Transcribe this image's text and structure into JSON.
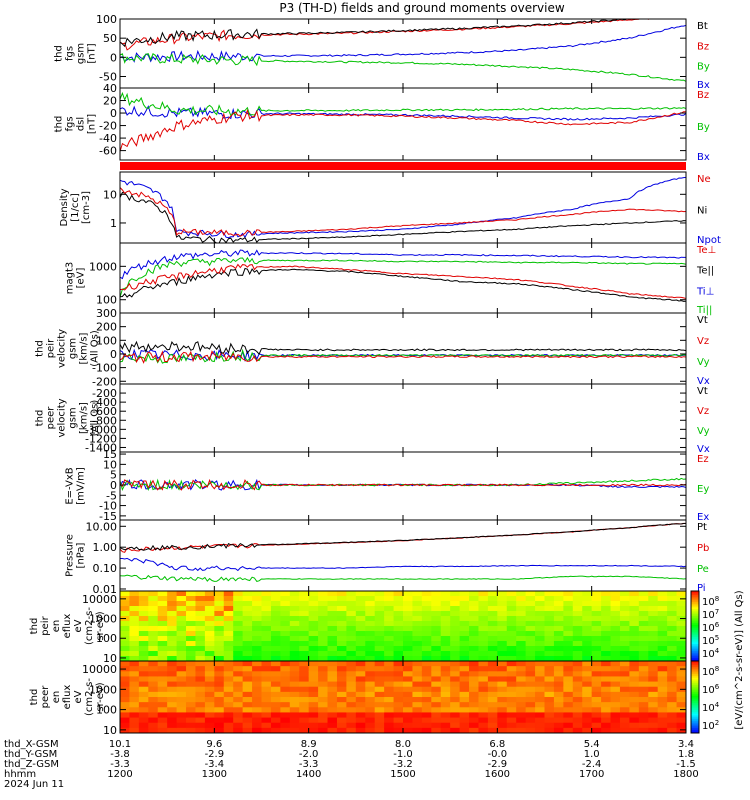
{
  "title": "P3 (TH-D) fields and ground moments overview",
  "x_axis": {
    "hhmm_ticks": [
      "1200",
      "1300",
      "1400",
      "1500",
      "1600",
      "1700",
      "1800"
    ],
    "row_labels": [
      "thd_X-GSM",
      "thd_Y-GSM",
      "thd_Z-GSM",
      "hhmm",
      "2024 Jun 11"
    ],
    "x_gsm": [
      "10.1",
      "9.6",
      "8.9",
      "8.0",
      "6.8",
      "5.4",
      "3.4"
    ],
    "y_gsm": [
      "-3.8",
      "-2.9",
      "-2.0",
      "-1.0",
      "-0.0",
      "1.0",
      "1.8"
    ],
    "z_gsm": [
      "-3.3",
      "-3.4",
      "-3.3",
      "-3.2",
      "-2.9",
      "-2.4",
      "-1.5"
    ]
  },
  "colorbar_label": "[eV/(cm^2-s-sr-eV)] (All Qs)",
  "chart_data": [
    {
      "type": "line",
      "id": "fgs_gsm",
      "ylabel": [
        "thd",
        "fgs",
        "gsm",
        "[nT]"
      ],
      "yticks": [
        "100",
        "50",
        "0",
        "-50"
      ],
      "ylim": [
        -80,
        100
      ],
      "series": [
        {
          "name": "Bt",
          "color": "#000000"
        },
        {
          "name": "Bz",
          "color": "#e00000"
        },
        {
          "name": "By",
          "color": "#00c000"
        },
        {
          "name": "Bx",
          "color": "#0000e0"
        }
      ],
      "x": [
        0,
        0.1,
        0.2,
        0.3,
        0.4,
        0.5,
        0.6,
        0.7,
        0.8,
        0.9,
        1.0
      ],
      "values": {
        "Bt": [
          40,
          55,
          60,
          62,
          65,
          70,
          75,
          82,
          90,
          100,
          110
        ],
        "Bz": [
          30,
          50,
          58,
          60,
          63,
          68,
          73,
          80,
          88,
          98,
          108
        ],
        "By": [
          0,
          -5,
          -8,
          -10,
          -12,
          -14,
          -18,
          -24,
          -32,
          -44,
          -62
        ],
        "Bx": [
          0,
          2,
          3,
          4,
          5,
          8,
          12,
          18,
          30,
          50,
          85
        ]
      }
    },
    {
      "type": "line",
      "id": "fgs_dsl",
      "ylabel": [
        "thd",
        "fgs",
        "dsl",
        "[nT]"
      ],
      "yticks": [
        "40",
        "20",
        "0",
        "-20",
        "-40",
        "-60"
      ],
      "ylim": [
        -75,
        40
      ],
      "series": [
        {
          "name": "Bz",
          "color": "#e00000"
        },
        {
          "name": "By",
          "color": "#00c000"
        },
        {
          "name": "Bx",
          "color": "#0000e0"
        }
      ],
      "x": [
        0,
        0.1,
        0.2,
        0.3,
        0.4,
        0.5,
        0.6,
        0.7,
        0.8,
        0.9,
        1.0
      ],
      "values": {
        "Bz": [
          -55,
          -20,
          -5,
          -3,
          -3,
          -5,
          -8,
          -12,
          -18,
          -15,
          2
        ],
        "By": [
          25,
          5,
          3,
          4,
          4,
          5,
          5,
          6,
          7,
          7,
          8
        ],
        "Bx": [
          5,
          0,
          -1,
          -1,
          -2,
          -3,
          -5,
          -8,
          -10,
          -8,
          -2
        ]
      }
    },
    {
      "type": "line",
      "id": "density",
      "ylabel": [
        "Density",
        "[1/cc]",
        "[cm-3]"
      ],
      "yticks": [
        "10",
        "1"
      ],
      "ylim": [
        0.2,
        60
      ],
      "log": true,
      "series": [
        {
          "name": "Ne",
          "color": "#e00000"
        },
        {
          "name": "Ni",
          "color": "#000000"
        },
        {
          "name": "Npot",
          "color": "#0000e0"
        }
      ],
      "x": [
        0,
        0.1,
        0.2,
        0.3,
        0.4,
        0.5,
        0.6,
        0.7,
        0.8,
        0.9,
        1.0
      ],
      "values": {
        "Ne": [
          15,
          0.5,
          0.45,
          0.5,
          0.6,
          0.8,
          1.0,
          1.3,
          2.0,
          3.0,
          2.5
        ],
        "Ni": [
          10,
          0.3,
          0.25,
          0.28,
          0.32,
          0.4,
          0.5,
          0.6,
          0.8,
          1.0,
          1.2
        ],
        "Npot": [
          30,
          0.5,
          0.4,
          0.45,
          0.5,
          0.6,
          0.9,
          1.5,
          3.0,
          7.0,
          40
        ]
      }
    },
    {
      "type": "line",
      "id": "temperature",
      "ylabel": [
        "magt3",
        "[eV]"
      ],
      "yticks": [
        "1000",
        "100"
      ],
      "ylim": [
        40,
        5000
      ],
      "log": true,
      "series": [
        {
          "name": "Te⊥",
          "color": "#e00000"
        },
        {
          "name": "Te||",
          "color": "#000000"
        },
        {
          "name": "Ti⊥",
          "color": "#0000e0"
        },
        {
          "name": "Ti||",
          "color": "#00c000"
        }
      ],
      "x": [
        0,
        0.1,
        0.2,
        0.3,
        0.4,
        0.5,
        0.6,
        0.7,
        0.8,
        0.9,
        1.0
      ],
      "values": {
        "Te⊥": [
          200,
          500,
          900,
          1000,
          800,
          600,
          500,
          400,
          250,
          150,
          110
        ],
        "Te||": [
          100,
          350,
          700,
          800,
          700,
          500,
          350,
          300,
          200,
          120,
          90
        ],
        "Ti⊥": [
          500,
          2000,
          2500,
          2500,
          2400,
          2200,
          2200,
          2100,
          2000,
          1900,
          1800
        ],
        "Ti||": [
          150,
          1300,
          1500,
          1500,
          1500,
          1400,
          1400,
          1300,
          1300,
          1200,
          1200
        ]
      }
    },
    {
      "type": "line",
      "id": "peir_velocity",
      "ylabel": [
        "thd",
        "peir",
        "velocity",
        "gsm",
        "[km/s]",
        "(All Qs)"
      ],
      "yticks": [
        "300",
        "200",
        "100",
        "0",
        "-100",
        "-200"
      ],
      "ylim": [
        -220,
        300
      ],
      "series": [
        {
          "name": "Vt",
          "color": "#000000"
        },
        {
          "name": "Vz",
          "color": "#e00000"
        },
        {
          "name": "Vy",
          "color": "#00c000"
        },
        {
          "name": "Vx",
          "color": "#0000e0"
        }
      ],
      "x": [
        0,
        0.1,
        0.2,
        0.3,
        0.4,
        0.5,
        0.6,
        0.7,
        0.8,
        0.9,
        1.0
      ],
      "values": {
        "Vt": [
          50,
          60,
          40,
          30,
          30,
          30,
          30,
          30,
          30,
          30,
          30
        ],
        "Vz": [
          -30,
          -20,
          -20,
          -20,
          -20,
          -20,
          -20,
          -20,
          -20,
          -20,
          -20
        ],
        "Vy": [
          -20,
          -40,
          -10,
          -10,
          -10,
          -10,
          -10,
          -10,
          -10,
          -10,
          -10
        ],
        "Vx": [
          0,
          -10,
          -10,
          -10,
          -10,
          -10,
          -10,
          -10,
          -10,
          -10,
          -10
        ]
      }
    },
    {
      "type": "line",
      "id": "peer_velocity",
      "ylabel": [
        "thd",
        "peer",
        "velocity",
        "gsm",
        "[km/s]",
        "(All Qs)"
      ],
      "yticks": [
        "-200",
        "-400",
        "-600",
        "-800",
        "-1000",
        "-1200",
        "-1400"
      ],
      "ylim": [
        -1500,
        0
      ],
      "series": [
        {
          "name": "Vt",
          "color": "#000000"
        },
        {
          "name": "Vz",
          "color": "#e00000"
        },
        {
          "name": "Vy",
          "color": "#00c000"
        },
        {
          "name": "Vx",
          "color": "#0000e0"
        }
      ],
      "x": [],
      "values": {}
    },
    {
      "type": "line",
      "id": "efield",
      "ylabel": [
        "E=-VxB",
        "[mV/m]"
      ],
      "yticks": [
        "15",
        "10",
        "5",
        "0",
        "-5",
        "-10",
        "-15"
      ],
      "ylim": [
        -17,
        16
      ],
      "series": [
        {
          "name": "Ez",
          "color": "#e00000"
        },
        {
          "name": "Ey",
          "color": "#00c000"
        },
        {
          "name": "Ex",
          "color": "#0000e0"
        }
      ],
      "x": [
        0,
        0.1,
        0.2,
        0.3,
        0.4,
        0.5,
        0.6,
        0.7,
        0.8,
        0.9,
        1.0
      ],
      "values": {
        "Ez": [
          0,
          0,
          0,
          0,
          0,
          0,
          0,
          0,
          0,
          0,
          0
        ],
        "Ey": [
          0,
          0,
          0,
          0,
          0,
          0,
          0,
          0,
          1,
          2,
          3
        ],
        "Ex": [
          0,
          0,
          0,
          0,
          0,
          0,
          0,
          0,
          0,
          -1,
          -1
        ]
      }
    },
    {
      "type": "line",
      "id": "pressure",
      "ylabel": [
        "Pressure",
        "[nPa]"
      ],
      "yticks": [
        "10.00",
        "1.00",
        "0.10",
        "0.01"
      ],
      "ylim": [
        0.008,
        20
      ],
      "log": true,
      "series": [
        {
          "name": "Pt",
          "color": "#000000"
        },
        {
          "name": "Pb",
          "color": "#e00000"
        },
        {
          "name": "Pe",
          "color": "#00c000"
        },
        {
          "name": "Pi",
          "color": "#0000e0"
        }
      ],
      "x": [
        0,
        0.1,
        0.2,
        0.3,
        0.4,
        0.5,
        0.6,
        0.7,
        0.8,
        0.9,
        1.0
      ],
      "values": {
        "Pt": [
          0.9,
          1.0,
          1.2,
          1.4,
          1.7,
          2.1,
          2.8,
          3.8,
          5.5,
          8.5,
          14
        ],
        "Pb": [
          0.7,
          0.95,
          1.15,
          1.35,
          1.65,
          2.05,
          2.75,
          3.75,
          5.4,
          8.4,
          13.8
        ],
        "Pe": [
          0.04,
          0.03,
          0.03,
          0.03,
          0.03,
          0.03,
          0.03,
          0.03,
          0.04,
          0.04,
          0.03
        ],
        "Pi": [
          0.3,
          0.1,
          0.1,
          0.1,
          0.1,
          0.12,
          0.12,
          0.13,
          0.13,
          0.13,
          0.12
        ]
      }
    },
    {
      "type": "heatmap",
      "id": "peir_spec",
      "ylabel": [
        "thd",
        "peir",
        "en",
        "eflux",
        "eV",
        "(cm2-s-",
        "sr-eV)"
      ],
      "yticks": [
        "10000",
        "1000",
        "100",
        "10"
      ],
      "ylim": [
        7,
        25000
      ],
      "log": true
    },
    {
      "type": "heatmap",
      "id": "peer_spec",
      "ylabel": [
        "thd",
        "peer",
        "en",
        "eflux",
        "eV",
        "(cm2-s-",
        "sr-eV)"
      ],
      "yticks": [
        "10000",
        "1000",
        "100",
        "10"
      ],
      "ylim": [
        7,
        25000
      ],
      "log": true
    }
  ],
  "colorbars": [
    {
      "ticks": [
        "10^8",
        "10^7",
        "10^6",
        "10^5",
        "10^4"
      ]
    },
    {
      "ticks": [
        "10^8",
        "10^6",
        "10^4",
        "10^2"
      ]
    }
  ]
}
